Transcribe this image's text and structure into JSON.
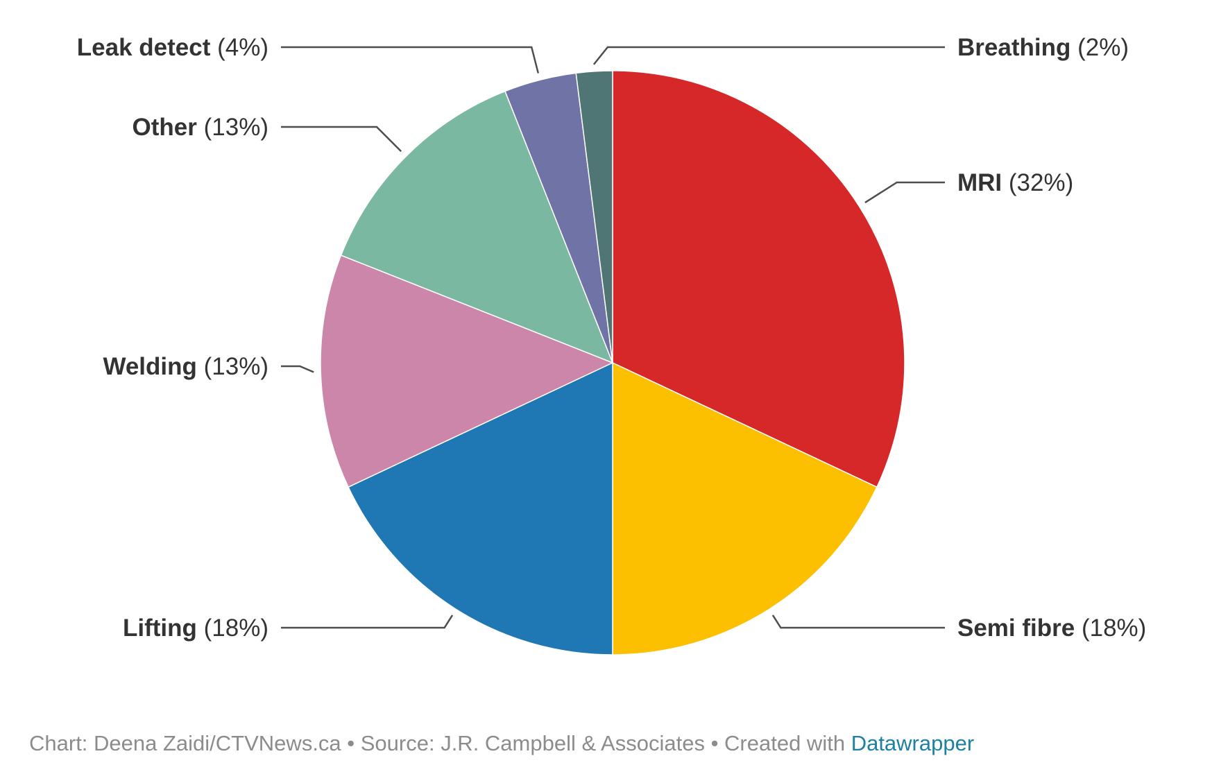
{
  "chart_data": {
    "type": "pie",
    "slices": [
      {
        "name": "MRI",
        "value": 32,
        "label_value": "(32%)",
        "color": "#d62828"
      },
      {
        "name": "Semi fibre",
        "value": 18,
        "label_value": "(18%)",
        "color": "#fcc000"
      },
      {
        "name": "Lifting",
        "value": 18,
        "label_value": "(18%)",
        "color": "#1f77b4"
      },
      {
        "name": "Welding",
        "value": 13,
        "label_value": "(13%)",
        "color": "#cc86aa"
      },
      {
        "name": "Other",
        "value": 13,
        "label_value": "(13%)",
        "color": "#7ab8a2"
      },
      {
        "name": "Leak detect",
        "value": 4,
        "label_value": "(4%)",
        "color": "#6f73a5"
      },
      {
        "name": "Breathing",
        "value": 2,
        "label_value": "(2%)",
        "color": "#4f7574"
      }
    ]
  },
  "footer": {
    "text": "Chart: Deena Zaidi/CTVNews.ca • Source: J.R. Campbell & Associates • Created with ",
    "link": "Datawrapper"
  }
}
